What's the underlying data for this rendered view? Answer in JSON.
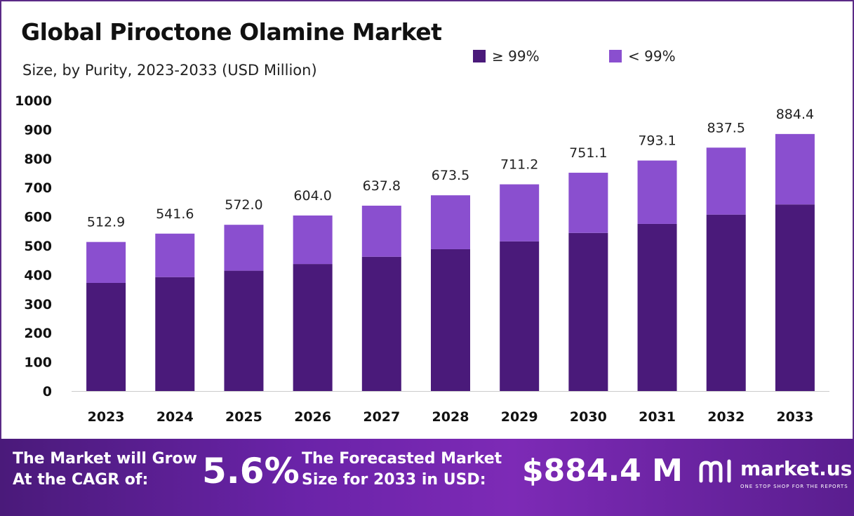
{
  "header": {
    "title": "Global Piroctone Olamine Market",
    "subtitle": "Size, by Purity, 2023-2033 (USD Million)"
  },
  "legend": [
    {
      "label": "≥ 99%",
      "color": "#4a1a7a"
    },
    {
      "label": "< 99%",
      "color": "#8a4fcf"
    }
  ],
  "chart_data": {
    "type": "bar",
    "stacked": true,
    "categories": [
      "2023",
      "2024",
      "2025",
      "2026",
      "2027",
      "2028",
      "2029",
      "2030",
      "2031",
      "2032",
      "2033"
    ],
    "series": [
      {
        "name": "≥ 99%",
        "color": "#4a1a7a",
        "values": [
          372,
          392,
          414,
          437,
          462,
          488,
          515,
          544,
          575,
          607,
          642
        ]
      },
      {
        "name": "< 99%",
        "color": "#8a4fcf",
        "values": [
          140.9,
          149.6,
          158.0,
          167.0,
          175.8,
          185.5,
          196.2,
          207.1,
          218.1,
          230.5,
          242.4
        ]
      }
    ],
    "totals": [
      "512.9",
      "541.6",
      "572.0",
      "604.0",
      "637.8",
      "673.5",
      "711.2",
      "751.1",
      "793.1",
      "837.5",
      "884.4"
    ],
    "total_values": [
      512.9,
      541.6,
      572.0,
      604.0,
      637.8,
      673.5,
      711.2,
      751.1,
      793.1,
      837.5,
      884.4
    ],
    "yticks": [
      "0",
      "100",
      "200",
      "300",
      "400",
      "500",
      "600",
      "700",
      "800",
      "900",
      "1000"
    ],
    "ylim": [
      0,
      1000
    ],
    "grid": false,
    "legend_position": "top-right"
  },
  "banner": {
    "cagr_line1": "The Market will Grow",
    "cagr_line2": "At the CAGR of:",
    "cagr_value": "5.6%",
    "forecast_line1": "The Forecasted Market",
    "forecast_line2": "Size for 2033 in USD:",
    "forecast_value": "$884.4 M",
    "brand_name": "market.us",
    "brand_tagline": "ONE STOP SHOP FOR THE REPORTS"
  }
}
